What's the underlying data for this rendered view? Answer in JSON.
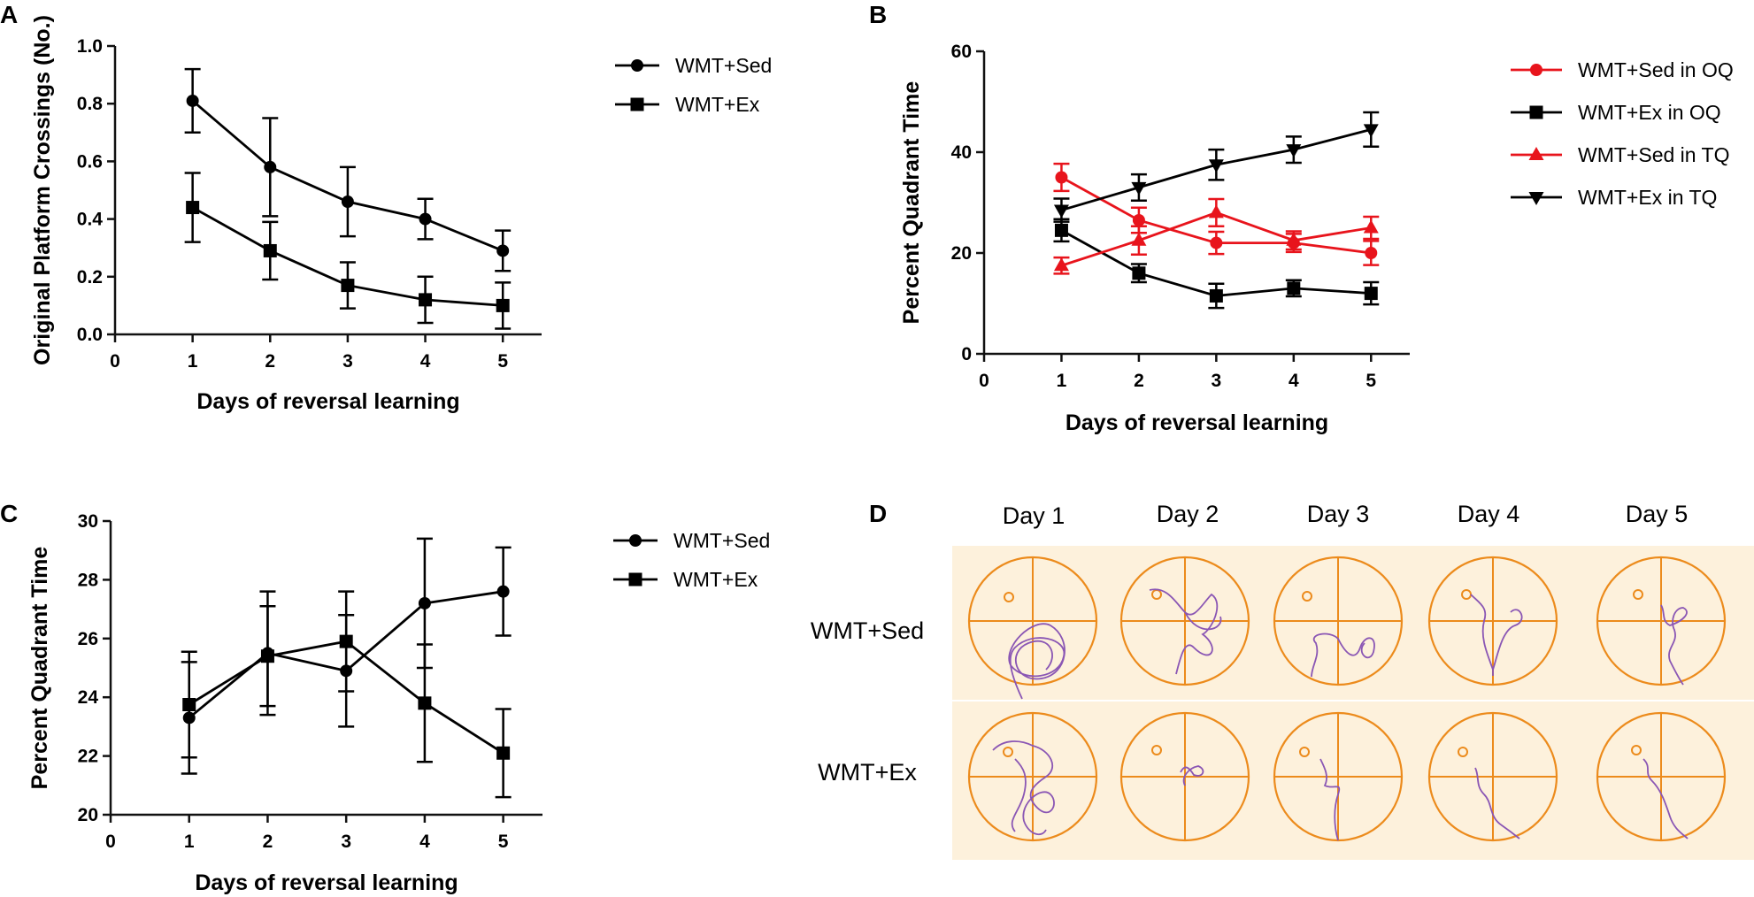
{
  "chart_data": [
    {
      "panel": "A",
      "type": "line",
      "xlabel": "Days of reversal learning",
      "ylabel": "Original Platform Crossings (No.)",
      "xlim": [
        0,
        5.5
      ],
      "ylim": [
        0,
        1.0
      ],
      "xticks": [
        0,
        1,
        2,
        3,
        4,
        5
      ],
      "yticks": [
        "0.0",
        "0.2",
        "0.4",
        "0.6",
        "0.8",
        "1.0"
      ],
      "x": [
        1,
        2,
        3,
        4,
        5
      ],
      "legend_position": "right",
      "series": [
        {
          "name": "WMT+Sed",
          "marker": "circle",
          "color": "#000000",
          "values": [
            0.81,
            0.58,
            0.46,
            0.4,
            0.29
          ],
          "errors": [
            0.11,
            0.17,
            0.12,
            0.07,
            0.07
          ]
        },
        {
          "name": "WMT+Ex",
          "marker": "square",
          "color": "#000000",
          "values": [
            0.44,
            0.29,
            0.17,
            0.12,
            0.1
          ],
          "errors": [
            0.12,
            0.1,
            0.08,
            0.08,
            0.08
          ]
        }
      ]
    },
    {
      "panel": "B",
      "type": "line",
      "xlabel": "Days of reversal learning",
      "ylabel": "Percent Quadrant Time",
      "xlim": [
        0,
        5.5
      ],
      "ylim": [
        0,
        60
      ],
      "xticks": [
        0,
        1,
        2,
        3,
        4,
        5
      ],
      "yticks": [
        "0",
        "20",
        "40",
        "60"
      ],
      "x": [
        1,
        2,
        3,
        4,
        5
      ],
      "legend_position": "right",
      "series": [
        {
          "name": "WMT+Sed in OQ",
          "marker": "circle",
          "color": "#e8141c",
          "values": [
            35,
            26.5,
            22,
            22,
            20
          ],
          "errors": [
            2.7,
            2.5,
            2.2,
            1.8,
            2.4
          ]
        },
        {
          "name": "WMT+Ex in OQ",
          "marker": "square",
          "color": "#000000",
          "values": [
            24.5,
            16,
            11.5,
            13,
            12
          ],
          "errors": [
            2.2,
            1.8,
            2.4,
            1.6,
            2.2
          ]
        },
        {
          "name": "WMT+Sed in TQ",
          "marker": "triangle-up",
          "color": "#e8141c",
          "values": [
            17.5,
            22.5,
            28,
            22.5,
            25
          ],
          "errors": [
            1.6,
            2.8,
            2.7,
            1.8,
            2.2
          ]
        },
        {
          "name": "WMT+Ex in TQ",
          "marker": "triangle-down",
          "color": "#000000",
          "values": [
            28.5,
            33,
            37.5,
            40.5,
            44.5
          ],
          "errors": [
            2.3,
            2.6,
            3.0,
            2.6,
            3.4
          ]
        }
      ]
    },
    {
      "panel": "C",
      "type": "line",
      "xlabel": "Days of reversal learning",
      "ylabel": "Percent Quadrant Time",
      "xlim": [
        0,
        5.5
      ],
      "ylim": [
        20,
        30
      ],
      "xticks": [
        0,
        1,
        2,
        3,
        4,
        5
      ],
      "yticks": [
        "20",
        "22",
        "24",
        "26",
        "28",
        "30"
      ],
      "x": [
        1,
        2,
        3,
        4,
        5
      ],
      "legend_position": "right",
      "series": [
        {
          "name": "WMT+Sed",
          "marker": "circle",
          "color": "#000000",
          "values": [
            23.3,
            25.5,
            24.9,
            27.2,
            27.6
          ],
          "errors": [
            1.9,
            2.1,
            1.9,
            2.2,
            1.5
          ]
        },
        {
          "name": "WMT+Ex",
          "marker": "square",
          "color": "#000000",
          "values": [
            23.75,
            25.4,
            25.9,
            23.8,
            22.1
          ],
          "errors": [
            1.8,
            1.7,
            1.7,
            2.0,
            1.5
          ]
        }
      ]
    }
  ],
  "panel_labels": {
    "a": "A",
    "b": "B",
    "c": "C",
    "d": "D"
  },
  "panel_d": {
    "day_headers": [
      "Day 1",
      "Day 2",
      "Day 3",
      "Day 4",
      "Day 5"
    ],
    "row_labels": [
      "WMT+Sed",
      "WMT+Ex"
    ],
    "colors": {
      "background": "#fdf1dc",
      "pool": "#ec8b1c",
      "path": "#8a56b4"
    }
  }
}
